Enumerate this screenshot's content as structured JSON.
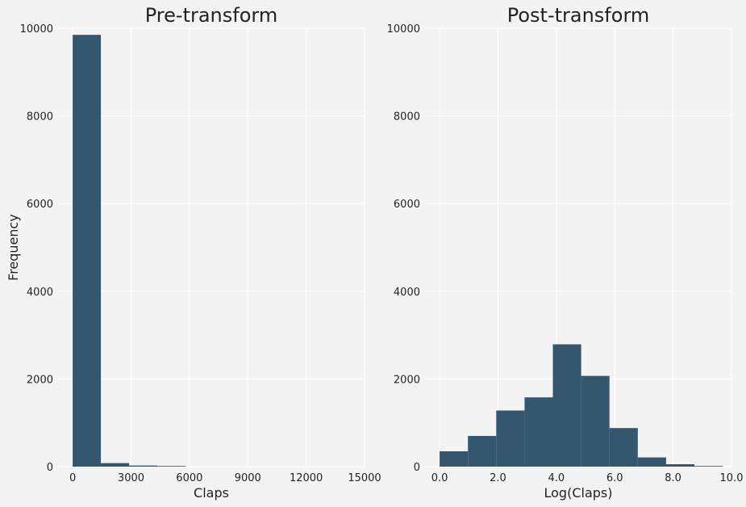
{
  "chart_data": [
    {
      "type": "bar",
      "title": "Pre-transform",
      "xlabel": "Claps",
      "ylabel": "Frequency",
      "xlim": [
        0,
        15000
      ],
      "ylim": [
        0,
        10000
      ],
      "xticks": [
        0,
        3000,
        6000,
        9000,
        12000,
        15000
      ],
      "xtick_labels": [
        "0",
        "3000",
        "6000",
        "9000",
        "12000",
        "15000"
      ],
      "yticks": [
        0,
        2000,
        4000,
        6000,
        8000,
        10000
      ],
      "ytick_labels": [
        "0",
        "2000",
        "4000",
        "6000",
        "8000",
        "10000"
      ],
      "grid": true,
      "bin_edges": [
        0,
        1450,
        2900,
        4350,
        5800
      ],
      "values": [
        9850,
        80,
        25,
        15
      ],
      "color": "#34566f"
    },
    {
      "type": "bar",
      "title": "Post-transform",
      "xlabel": "Log(Claps)",
      "ylabel": "",
      "xlim": [
        0,
        10
      ],
      "ylim": [
        0,
        10000
      ],
      "xticks": [
        0,
        2,
        4,
        6,
        8,
        10
      ],
      "xtick_labels": [
        "0.0",
        "2.0",
        "4.0",
        "6.0",
        "8.0",
        "10.0"
      ],
      "yticks": [
        0,
        2000,
        4000,
        6000,
        8000,
        10000
      ],
      "ytick_labels": [
        "0",
        "2000",
        "4000",
        "6000",
        "8000",
        "10000"
      ],
      "grid": true,
      "bin_edges": [
        0,
        0.97,
        1.94,
        2.91,
        3.88,
        4.85,
        5.82,
        6.79,
        7.76,
        8.73,
        9.7
      ],
      "values": [
        350,
        700,
        1280,
        1580,
        2790,
        2070,
        880,
        210,
        55,
        15
      ],
      "color": "#34566f"
    }
  ]
}
